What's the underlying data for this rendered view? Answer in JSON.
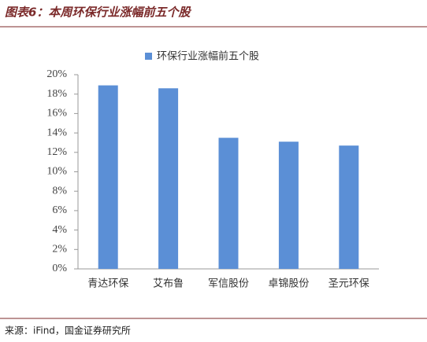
{
  "chart_data": {
    "type": "bar",
    "title": "图表6：本周环保行业涨幅前五个股",
    "source": "来源：iFind，国金证券研究所",
    "categories": [
      "青达环保",
      "艾布鲁",
      "军信股份",
      "卓锦股份",
      "圣元环保"
    ],
    "series": [
      {
        "name": "环保行业涨幅前五个股",
        "color": "#5b8fd6",
        "values": [
          18.9,
          18.6,
          13.5,
          13.1,
          12.7
        ]
      }
    ],
    "ylim": [
      0,
      20
    ],
    "yticks": [
      {
        "value": 0,
        "label": "0%"
      },
      {
        "value": 2,
        "label": "2%"
      },
      {
        "value": 4,
        "label": "4%"
      },
      {
        "value": 6,
        "label": "6%"
      },
      {
        "value": 8,
        "label": "8%"
      },
      {
        "value": 10,
        "label": "10%"
      },
      {
        "value": 12,
        "label": "12%"
      },
      {
        "value": 14,
        "label": "14%"
      },
      {
        "value": 16,
        "label": "16%"
      },
      {
        "value": 18,
        "label": "18%"
      },
      {
        "value": 20,
        "label": "20%"
      }
    ],
    "legend": "top"
  }
}
